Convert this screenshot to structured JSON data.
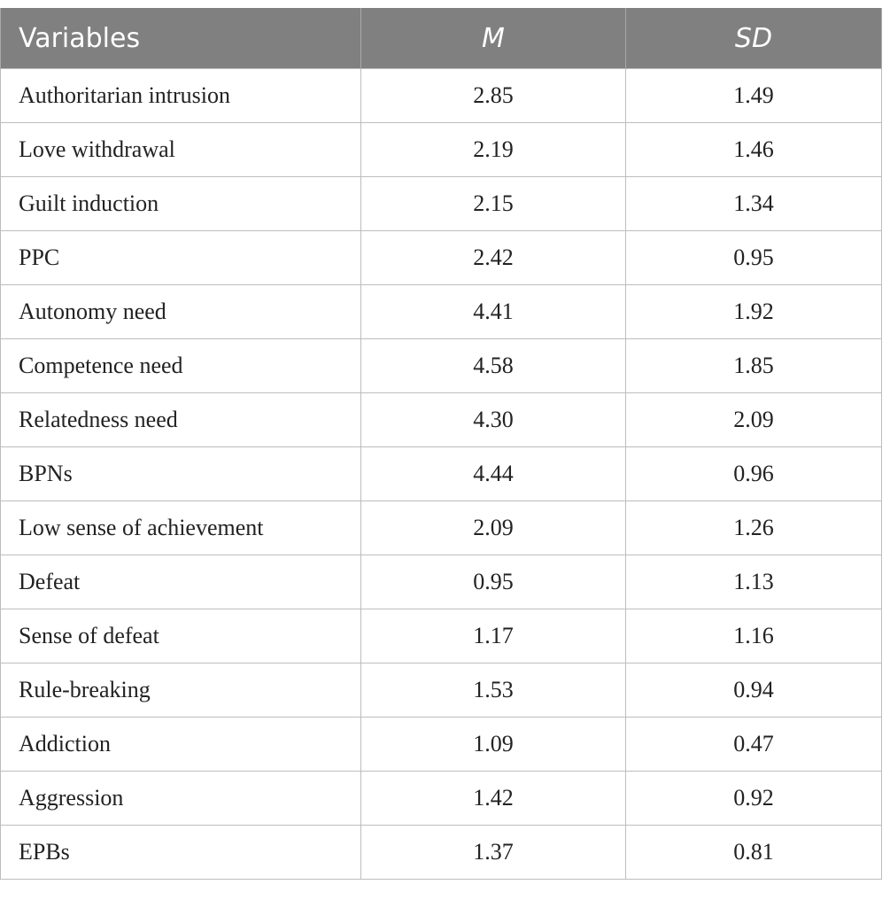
{
  "table": {
    "headers": [
      "Variables",
      "M",
      "SD"
    ],
    "rows": [
      [
        "Authoritarian intrusion",
        "2.85",
        "1.49"
      ],
      [
        "Love withdrawal",
        "2.19",
        "1.46"
      ],
      [
        "Guilt induction",
        "2.15",
        "1.34"
      ],
      [
        "PPC",
        "2.42",
        "0.95"
      ],
      [
        "Autonomy need",
        "4.41",
        "1.92"
      ],
      [
        "Competence need",
        "4.58",
        "1.85"
      ],
      [
        "Relatedness need",
        "4.30",
        "2.09"
      ],
      [
        "BPNs",
        "4.44",
        "0.96"
      ],
      [
        "Low sense of achievement",
        "2.09",
        "1.26"
      ],
      [
        "Defeat",
        "0.95",
        "1.13"
      ],
      [
        "Sense of defeat",
        "1.17",
        "1.16"
      ],
      [
        "Rule-breaking",
        "1.53",
        "0.94"
      ],
      [
        "Addiction",
        "1.09",
        "0.47"
      ],
      [
        "Aggression",
        "1.42",
        "0.92"
      ],
      [
        "EPBs",
        "1.37",
        "0.81"
      ]
    ]
  },
  "colors": {
    "header_background": "#808080",
    "header_text": "#ffffff",
    "grid_line": "#bdbdbd"
  }
}
